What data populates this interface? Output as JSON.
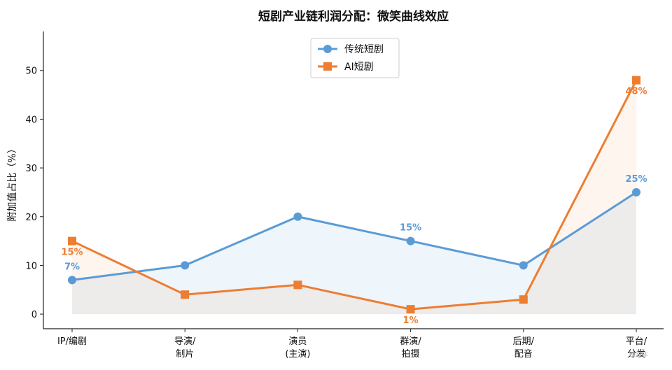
{
  "chart_data": {
    "type": "line",
    "title": "短剧产业链利润分配：微笑曲线效应",
    "ylabel": "附加值占比（%）",
    "xlabel": "",
    "categories": [
      [
        "IP/编剧"
      ],
      [
        "导演/",
        "制片"
      ],
      [
        "演员",
        "(主演)"
      ],
      [
        "群演/",
        "拍摄"
      ],
      [
        "后期/",
        "配音"
      ],
      [
        "平台/",
        "分发"
      ]
    ],
    "ylim": [
      -3,
      58
    ],
    "yticks": [
      0,
      10,
      20,
      30,
      40,
      50
    ],
    "grid": false,
    "legend_position": "top-center",
    "series": [
      {
        "name": "传统短剧",
        "values": [
          7,
          10,
          20,
          15,
          10,
          25
        ],
        "color": "#5b9bd5",
        "marker": "circle",
        "labels": [
          "7%",
          "",
          "",
          "15%",
          "",
          "25%"
        ]
      },
      {
        "name": "AI短剧",
        "values": [
          15,
          4,
          6,
          1,
          3,
          48
        ],
        "color": "#ed7d31",
        "marker": "square",
        "labels": [
          "15%",
          "",
          "",
          "1%",
          "",
          "48%"
        ]
      }
    ]
  },
  "watermark": "钛媒体"
}
